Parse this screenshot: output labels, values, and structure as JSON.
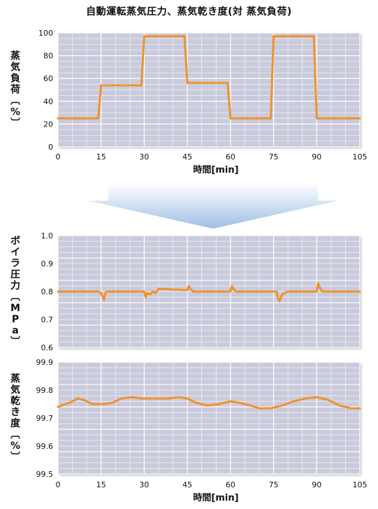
{
  "title": "自動運転蒸気圧力、蒸気乾き度(対 蒸気負荷)",
  "colors": {
    "line": "#f0922a",
    "plot_bg": "#c9cbdc",
    "grid": "#ffffff",
    "arrow": "#a9c6e6"
  },
  "chart_data": [
    {
      "type": "line",
      "ylabel": "蒸気負荷[%]",
      "xlabel": "時間[min]",
      "xlim": [
        0,
        105
      ],
      "ylim": [
        0,
        100
      ],
      "xticks": [
        "0",
        "15",
        "30",
        "45",
        "60",
        "75",
        "90",
        "105"
      ],
      "yticks": [
        "0",
        "20",
        "40",
        "60",
        "80",
        "100"
      ],
      "grid": true,
      "series": [
        {
          "x": [
            0,
            14,
            15,
            29,
            30,
            44,
            45,
            59,
            60,
            74,
            75,
            89,
            90,
            105
          ],
          "y": [
            25,
            25,
            54,
            54,
            97,
            97,
            56,
            56,
            25,
            25,
            97,
            97,
            25,
            25
          ]
        }
      ]
    },
    {
      "type": "line",
      "ylabel": "ボイラ圧力[MPa]",
      "xlabel": "",
      "xlim": [
        0,
        105
      ],
      "ylim": [
        0.6,
        1.0
      ],
      "xticks": [],
      "yticks": [
        "0.6",
        "0.7",
        "0.8",
        "0.9",
        "1.0"
      ],
      "grid": true,
      "series": [
        {
          "x": [
            0,
            14,
            15,
            16,
            16.5,
            17,
            30,
            30.5,
            31,
            32,
            33,
            34,
            35,
            45,
            45.5,
            46,
            47,
            60,
            60.5,
            61,
            62,
            76,
            76.5,
            77,
            78,
            79,
            80,
            90,
            90.5,
            91,
            92,
            95,
            105
          ],
          "y": [
            0.8,
            0.8,
            0.795,
            0.77,
            0.795,
            0.8,
            0.8,
            0.78,
            0.795,
            0.79,
            0.8,
            0.795,
            0.81,
            0.805,
            0.82,
            0.81,
            0.8,
            0.8,
            0.82,
            0.81,
            0.8,
            0.8,
            0.78,
            0.765,
            0.79,
            0.795,
            0.8,
            0.8,
            0.83,
            0.815,
            0.8,
            0.8,
            0.8
          ]
        }
      ]
    },
    {
      "type": "line",
      "ylabel": "蒸気乾き度[%]",
      "xlabel": "時間[min]",
      "xlim": [
        0,
        105
      ],
      "ylim": [
        99.5,
        99.9
      ],
      "xticks": [
        "0",
        "15",
        "30",
        "45",
        "60",
        "75",
        "90",
        "105"
      ],
      "yticks": [
        "99.5",
        "99.6",
        "99.7",
        "99.8",
        "99.9"
      ],
      "grid": true,
      "series": [
        {
          "x": [
            0,
            4,
            7,
            9,
            12,
            16,
            19,
            22,
            26,
            29,
            33,
            38,
            42,
            45,
            48,
            52,
            56,
            60,
            63,
            67,
            70,
            74,
            78,
            82,
            86,
            90,
            94,
            98,
            102,
            105
          ],
          "y": [
            99.74,
            99.755,
            99.77,
            99.765,
            99.75,
            99.75,
            99.755,
            99.77,
            99.775,
            99.77,
            99.77,
            99.77,
            99.775,
            99.77,
            99.755,
            99.745,
            99.75,
            99.76,
            99.755,
            99.745,
            99.735,
            99.735,
            99.745,
            99.76,
            99.77,
            99.775,
            99.765,
            99.745,
            99.735,
            99.735
          ]
        }
      ]
    }
  ]
}
